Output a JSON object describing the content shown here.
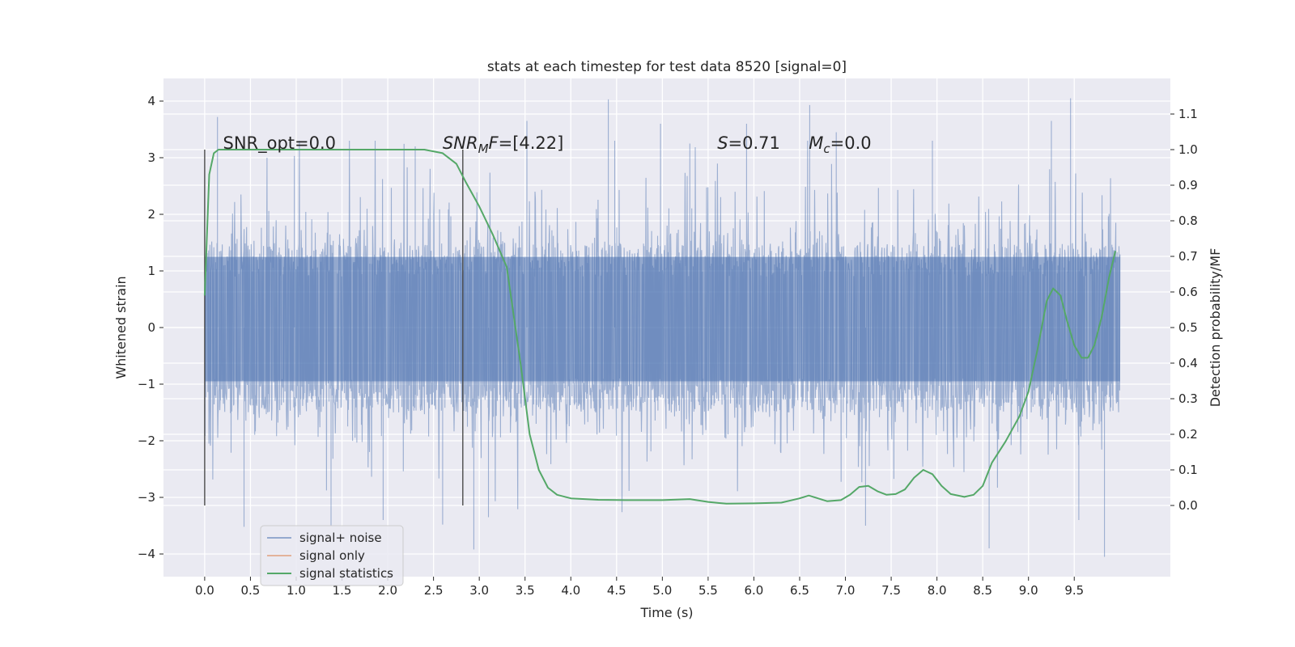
{
  "chart_data": {
    "type": "line",
    "title": "stats at each timestep for test data 8520 [signal=0]",
    "xlabel": "Time (s)",
    "ylabel": "Whitened strain",
    "y2label": "Detection probability/MF",
    "xlim": [
      -0.45,
      10.55
    ],
    "ylim": [
      -4.4,
      4.4
    ],
    "y2lim": [
      -0.2,
      1.2
    ],
    "xticks": [
      0.0,
      0.5,
      1.0,
      1.5,
      2.0,
      2.5,
      3.0,
      3.5,
      4.0,
      4.5,
      5.0,
      5.5,
      6.0,
      6.5,
      7.0,
      7.5,
      8.0,
      8.5,
      9.0,
      9.5
    ],
    "yticks": [
      -4,
      -3,
      -2,
      -1,
      0,
      1,
      2,
      3,
      4
    ],
    "y2ticks": [
      0.0,
      0.1,
      0.2,
      0.3,
      0.4,
      0.5,
      0.6,
      0.7,
      0.8,
      0.9,
      1.0,
      1.1
    ],
    "grid": true,
    "legend_position": "lower-left",
    "vertical_markers": [
      0.0,
      2.82
    ],
    "annotations": [
      {
        "x": 0.2,
        "y2": 1.0,
        "prefix": "SNR_opt=0.0",
        "italic": "",
        "sub": "",
        "suffix": ""
      },
      {
        "x": 2.6,
        "y2": 1.0,
        "prefix": "",
        "italic": "SNR",
        "sub": "M",
        "italic2": "F",
        "suffix": "=[4.22]"
      },
      {
        "x": 5.6,
        "y2": 1.0,
        "prefix": "",
        "italic": "S",
        "sub": "",
        "suffix": "=0.71"
      },
      {
        "x": 6.6,
        "y2": 1.0,
        "prefix": "",
        "italic": "M",
        "sub": "c",
        "suffix": "=0.0"
      }
    ],
    "series": [
      {
        "name": "signal+ noise",
        "color": "#4c72b0",
        "axis": "left",
        "kind": "noise",
        "x_range": [
          0.0,
          10.0
        ],
        "core_range": [
          -0.95,
          1.25
        ],
        "typical_amplitude": 2.3,
        "peaks": [
          {
            "x": 0.14,
            "y": 3.72
          },
          {
            "x": 0.43,
            "y": -3.52
          },
          {
            "x": 0.98,
            "y": 3.03
          },
          {
            "x": 1.38,
            "y": -3.5
          },
          {
            "x": 2.3,
            "y": 3.2
          },
          {
            "x": 2.6,
            "y": -3.48
          },
          {
            "x": 2.94,
            "y": -3.92
          },
          {
            "x": 3.52,
            "y": 3.65
          },
          {
            "x": 4.41,
            "y": 4.03
          },
          {
            "x": 4.48,
            "y": 3.3
          },
          {
            "x": 4.98,
            "y": 3.6
          },
          {
            "x": 5.92,
            "y": 3.6
          },
          {
            "x": 6.61,
            "y": 3.93
          },
          {
            "x": 7.22,
            "y": -3.5
          },
          {
            "x": 7.95,
            "y": 3.3
          },
          {
            "x": 8.57,
            "y": -3.9
          },
          {
            "x": 9.25,
            "y": 3.65
          },
          {
            "x": 9.46,
            "y": 4.05
          },
          {
            "x": 9.83,
            "y": -4.05
          },
          {
            "x": 1.95,
            "y": -3.4
          },
          {
            "x": 5.3,
            "y": 3.25
          },
          {
            "x": 6.9,
            "y": 3.45
          },
          {
            "x": 9.55,
            "y": -3.4
          },
          {
            "x": 3.1,
            "y": -3.35
          }
        ]
      },
      {
        "name": "signal only",
        "color": "#dd8452",
        "axis": "left",
        "kind": "flat",
        "x": [
          0.0,
          10.0
        ],
        "y": [
          0.0,
          0.0
        ]
      },
      {
        "name": "signal statistics",
        "color": "#55a868",
        "axis": "right",
        "kind": "line",
        "x": [
          0.0,
          0.05,
          0.1,
          0.15,
          0.25,
          0.5,
          1.0,
          1.5,
          2.0,
          2.4,
          2.6,
          2.75,
          2.85,
          3.0,
          3.15,
          3.3,
          3.45,
          3.55,
          3.65,
          3.75,
          3.85,
          4.0,
          4.3,
          4.6,
          5.0,
          5.3,
          5.5,
          5.7,
          6.0,
          6.3,
          6.5,
          6.6,
          6.7,
          6.8,
          6.95,
          7.05,
          7.15,
          7.25,
          7.35,
          7.45,
          7.55,
          7.65,
          7.75,
          7.85,
          7.95,
          8.05,
          8.15,
          8.3,
          8.4,
          8.5,
          8.6,
          8.75,
          8.9,
          9.0,
          9.1,
          9.2,
          9.27,
          9.35,
          9.42,
          9.5,
          9.58,
          9.65,
          9.72,
          9.8,
          9.88,
          9.95
        ],
        "y": [
          0.59,
          0.93,
          0.99,
          1.0,
          1.0,
          1.0,
          1.0,
          1.0,
          1.0,
          1.0,
          0.99,
          0.96,
          0.91,
          0.84,
          0.76,
          0.67,
          0.4,
          0.2,
          0.1,
          0.05,
          0.03,
          0.02,
          0.016,
          0.015,
          0.015,
          0.018,
          0.01,
          0.005,
          0.006,
          0.008,
          0.02,
          0.028,
          0.02,
          0.012,
          0.015,
          0.03,
          0.052,
          0.055,
          0.04,
          0.03,
          0.032,
          0.045,
          0.078,
          0.1,
          0.088,
          0.055,
          0.032,
          0.024,
          0.03,
          0.055,
          0.12,
          0.18,
          0.25,
          0.32,
          0.44,
          0.575,
          0.61,
          0.59,
          0.52,
          0.45,
          0.415,
          0.415,
          0.45,
          0.53,
          0.64,
          0.715
        ]
      }
    ]
  }
}
